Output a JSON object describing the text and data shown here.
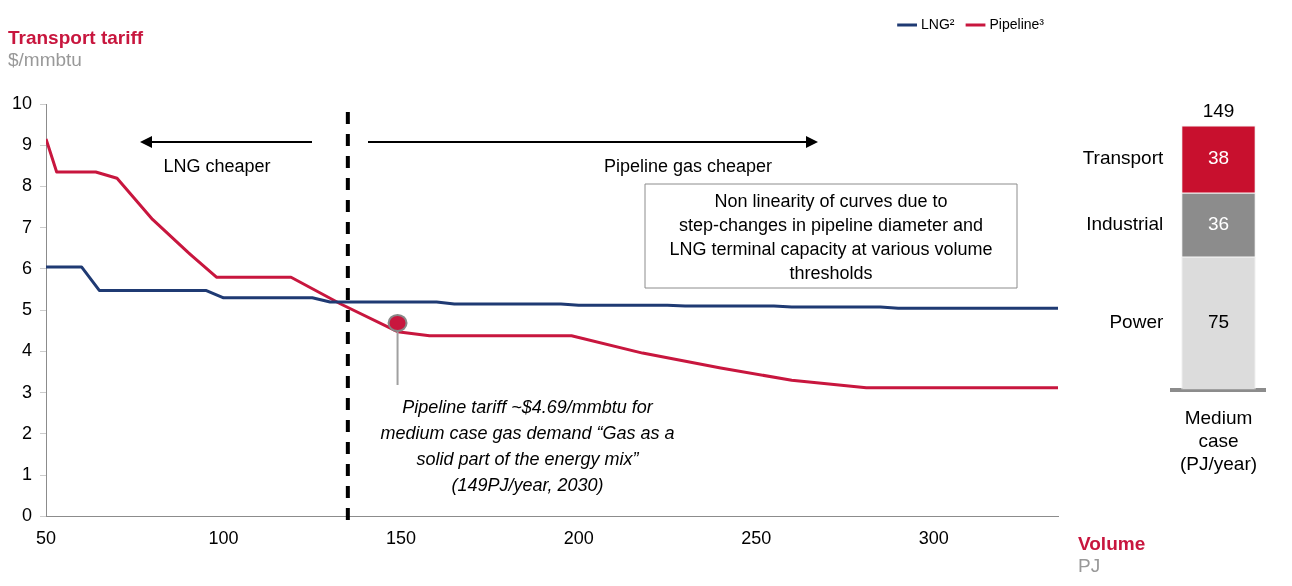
{
  "chart_data": [
    {
      "type": "line",
      "ylabel": "Transport tariff",
      "xlabel": "Volume",
      "xlim": [
        50,
        335
      ],
      "xticks": [
        50,
        100,
        150,
        200,
        250,
        300
      ],
      "ylim": [
        0,
        10
      ],
      "yticks": [
        0,
        1,
        2,
        3,
        4,
        5,
        6,
        7,
        8,
        9,
        10
      ],
      "grid": false,
      "legend": "top right",
      "marker": "none",
      "line_style": "solid",
      "series": [
        {
          "name": "LNG²",
          "color": "#1f3a73",
          "x": [
            50,
            60,
            65,
            95,
            100,
            125,
            130,
            160,
            165,
            195,
            200,
            225,
            230,
            255,
            260,
            285,
            290,
            335
          ],
          "values": [
            6.05,
            6.05,
            5.48,
            5.48,
            5.3,
            5.3,
            5.2,
            5.2,
            5.15,
            5.15,
            5.12,
            5.12,
            5.1,
            5.1,
            5.08,
            5.08,
            5.05,
            5.05
          ]
        },
        {
          "name": "Pipeline³",
          "color": "#c8163e",
          "x": [
            50,
            53,
            64,
            70,
            80,
            90,
            98,
            119,
            133,
            149,
            158,
            198,
            218,
            240,
            260,
            281,
            335
          ],
          "values": [
            9.15,
            8.35,
            8.35,
            8.2,
            7.2,
            6.4,
            5.8,
            5.8,
            5.15,
            4.48,
            4.38,
            4.38,
            3.96,
            3.6,
            3.3,
            3.12,
            3.12
          ]
        }
      ],
      "ref_lines": [
        {
          "axis": "x",
          "value": 135,
          "color": "#000000",
          "line_style": "dashed"
        }
      ],
      "annotations": [
        "LNG cheaper",
        "Pipeline gas cheaper",
        "Non linearity of curves due to step-changes in pipeline diameter and LNG terminal capacity at various volume thresholds",
        {
          "text": "Pipeline tariff ~$4.69/mmbtu for medium case gas demand “Gas as a solid part of the energy mix” (149PJ/year, 2030)",
          "x": 149,
          "y": 4.69
        },
        "$/mmbtu",
        "PJ"
      ]
    },
    {
      "type": "bar",
      "categories": [
        "Medium case (PJ/year)"
      ],
      "stacked": true,
      "data_labels": true,
      "totals": [
        "149"
      ],
      "series": [
        {
          "name": "Power",
          "color": "#dcdcdc",
          "values": [
            75
          ]
        },
        {
          "name": "Industrial",
          "color": "#8c8c8c",
          "values": [
            36
          ]
        },
        {
          "name": "Transport",
          "color": "#c8102e",
          "values": [
            38
          ]
        }
      ]
    }
  ]
}
